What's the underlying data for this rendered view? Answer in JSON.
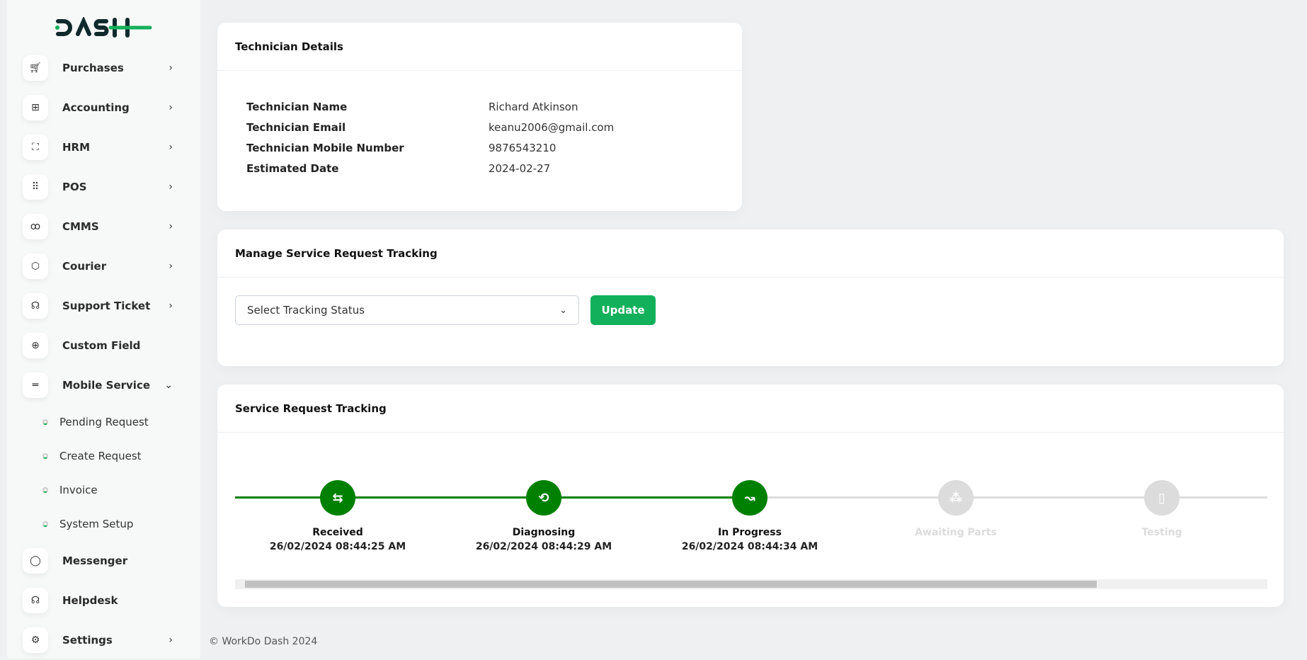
{
  "brand": {
    "logo_text": "DASH",
    "accent": "#12b05a"
  },
  "sidebar": {
    "items": [
      {
        "label": "Purchases",
        "icon": "cart-icon",
        "chevron": "›"
      },
      {
        "label": "Accounting",
        "icon": "grid-plus-icon",
        "chevron": "›"
      },
      {
        "label": "HRM",
        "icon": "user-scan-icon",
        "chevron": "›"
      },
      {
        "label": "POS",
        "icon": "dots-grid-icon",
        "chevron": "›"
      },
      {
        "label": "CMMS",
        "icon": "circles-icon",
        "chevron": "›"
      },
      {
        "label": "Courier",
        "icon": "box-icon",
        "chevron": "›"
      },
      {
        "label": "Support Ticket",
        "icon": "headset-icon",
        "chevron": "›"
      },
      {
        "label": "Custom Field",
        "icon": "plus-circle-icon"
      },
      {
        "label": "Mobile Service",
        "icon": "menu-icon",
        "chevron": "⌄"
      }
    ],
    "sub_items": [
      "Pending Request",
      "Create Request",
      "Invoice",
      "System Setup"
    ],
    "bottom_items": [
      {
        "label": "Messenger",
        "icon": "chat-icon"
      },
      {
        "label": "Helpdesk",
        "icon": "headset-icon"
      },
      {
        "label": "Settings",
        "icon": "gear-icon",
        "chevron": "›"
      }
    ]
  },
  "technician": {
    "title": "Technician Details",
    "rows": [
      {
        "k": "Technician Name",
        "v": "Richard Atkinson"
      },
      {
        "k": "Technician Email",
        "v": "keanu2006@gmail.com"
      },
      {
        "k": "Technician Mobile Number",
        "v": "9876543210"
      },
      {
        "k": "Estimated Date",
        "v": "2024-02-27"
      }
    ]
  },
  "manage": {
    "title": "Manage Service Request Tracking",
    "select_value": "Select Tracking Status",
    "update_label": "Update"
  },
  "tracking": {
    "title": "Service Request Tracking",
    "active_color": "#008000",
    "inactive_color": "#dcdcdc",
    "steps": [
      {
        "name": "Received",
        "date": "26/02/2024 08:44:25 AM",
        "done": true,
        "icon": "arrows-swap-icon",
        "glyph": "⇆"
      },
      {
        "name": "Diagnosing",
        "date": "26/02/2024 08:44:29 AM",
        "done": true,
        "icon": "repeat-icon",
        "glyph": "⟲"
      },
      {
        "name": "In Progress",
        "date": "26/02/2024 08:44:34 AM",
        "done": true,
        "icon": "trend-icon",
        "glyph": "↝"
      },
      {
        "name": "Awaiting Parts",
        "date": "",
        "done": false,
        "icon": "circles-icon",
        "glyph": "⁂"
      },
      {
        "name": "Testing",
        "date": "",
        "done": false,
        "icon": "device-icon",
        "glyph": "▯"
      }
    ]
  },
  "footer": "© WorkDo Dash 2024"
}
